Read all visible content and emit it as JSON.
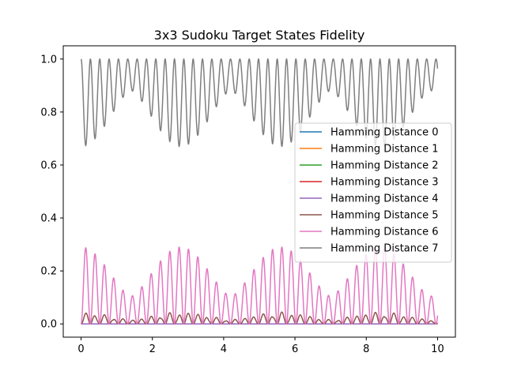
{
  "chart_data": {
    "type": "line",
    "title": "3x3 Sudoku Target States Fidelity",
    "xlabel": "",
    "ylabel": "",
    "xlim": [
      -0.5,
      10.5
    ],
    "ylim": [
      -0.05,
      1.05
    ],
    "xticks": [
      0,
      2,
      4,
      6,
      8,
      10
    ],
    "yticks": [
      0.0,
      0.2,
      0.4,
      0.6,
      0.8,
      1.0
    ],
    "xtick_labels": [
      "0",
      "2",
      "4",
      "6",
      "8",
      "10"
    ],
    "ytick_labels": [
      "0.0",
      "0.2",
      "0.4",
      "0.6",
      "0.8",
      "1.0"
    ],
    "grid": false,
    "legend_position": "center-right",
    "x_range": [
      0,
      10
    ],
    "series": [
      {
        "name": "Hamming Distance 0",
        "color": "#1f77b4",
        "kind": "zero"
      },
      {
        "name": "Hamming Distance 1",
        "color": "#ff7f0e",
        "kind": "zero"
      },
      {
        "name": "Hamming Distance 2",
        "color": "#2ca02c",
        "kind": "zero"
      },
      {
        "name": "Hamming Distance 3",
        "color": "#d62728",
        "kind": "zero"
      },
      {
        "name": "Hamming Distance 4",
        "color": "#9467bd",
        "kind": "zero"
      },
      {
        "name": "Hamming Distance 5",
        "color": "#8c564b",
        "kind": "small"
      },
      {
        "name": "Hamming Distance 6",
        "color": "#e377c2",
        "kind": "mid"
      },
      {
        "name": "Hamming Distance 7",
        "color": "#7f7f7f",
        "kind": "high"
      }
    ]
  }
}
